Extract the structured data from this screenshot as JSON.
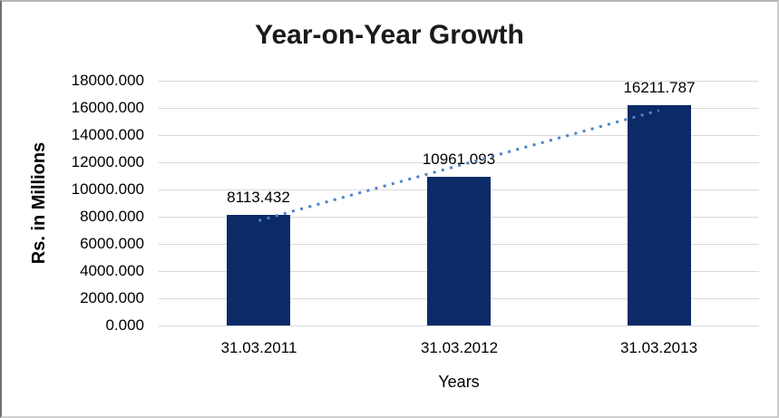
{
  "chart_data": {
    "type": "bar",
    "title": "Year-on-Year Growth",
    "categories": [
      "31.03.2011",
      "31.03.2012",
      "31.03.2013"
    ],
    "values": [
      8113.432,
      10961.093,
      16211.787
    ],
    "data_labels": [
      "8113.432",
      "10961.093",
      "16211.787"
    ],
    "xlabel": "Years",
    "ylabel": "Rs. in Millions",
    "ylim": [
      0,
      18000
    ],
    "ytick_step": 2000,
    "ytick_labels": [
      "0.000",
      "2000.000",
      "4000.000",
      "6000.000",
      "8000.000",
      "10000.000",
      "12000.000",
      "14000.000",
      "16000.000",
      "18000.000"
    ],
    "grid": true,
    "legend": "none",
    "trendline": {
      "type": "linear",
      "style": "dotted",
      "color": "#4f82c4"
    },
    "colors": {
      "bar": "#0b2a67",
      "gridline": "#d9d9d9",
      "text": "#000000",
      "title": "#1a1a1a"
    }
  }
}
